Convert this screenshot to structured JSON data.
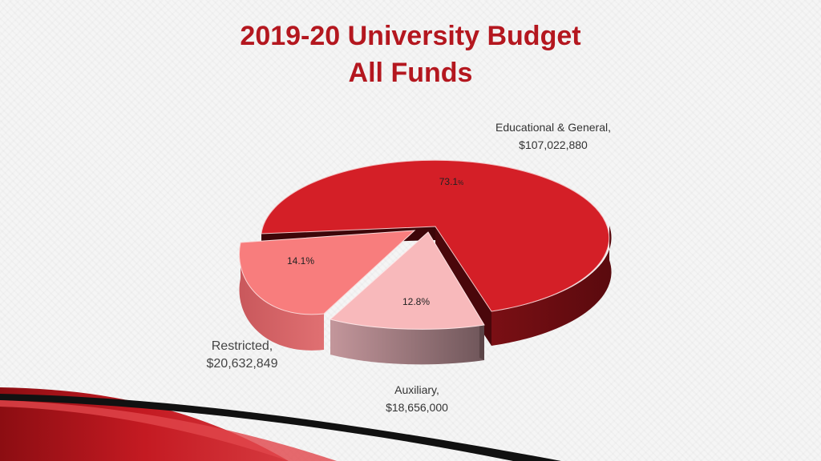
{
  "title_line1": "2019-20 University Budget",
  "title_line2": "All Funds",
  "chart_data": {
    "type": "pie",
    "title": "2019-20 University Budget All Funds",
    "three_d": true,
    "exploded": [
      "Restricted",
      "Auxiliary"
    ],
    "slices": [
      {
        "name": "Educational & General",
        "value": 107022880,
        "value_label": "$107,022,880",
        "percent": 73.1,
        "percent_label": "73.1",
        "percent_suffix": "%",
        "color": "#d41f27"
      },
      {
        "name": "Restricted",
        "value": 20632849,
        "value_label": "$20,632,849",
        "percent": 14.1,
        "percent_label": "14.1%",
        "color": "#f87d7d"
      },
      {
        "name": "Auxiliary",
        "value": 18656000,
        "value_label": "$18,656,000",
        "percent": 12.8,
        "percent_label": "12.8%",
        "color": "#f8b9bb"
      }
    ]
  }
}
